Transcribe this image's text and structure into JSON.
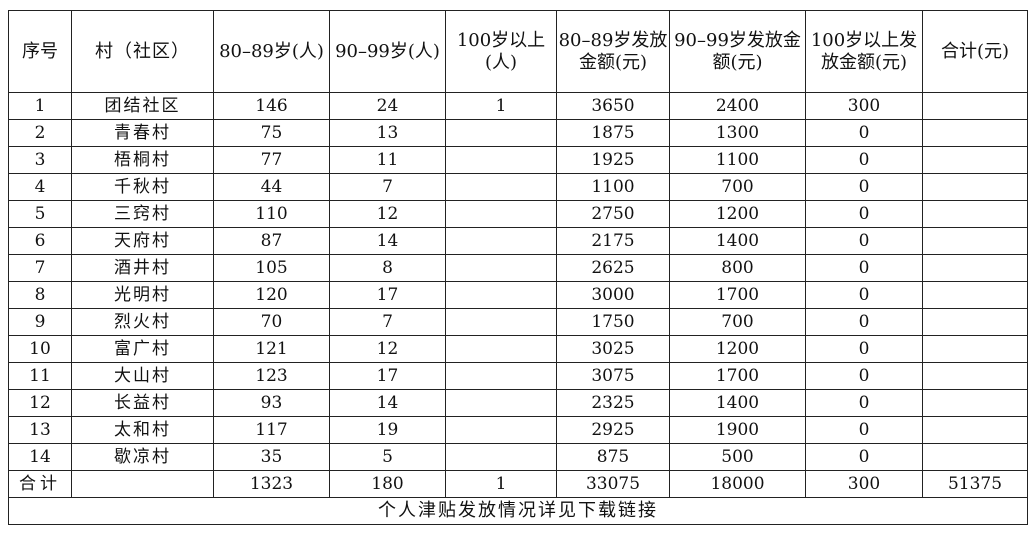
{
  "table": {
    "headers": [
      "序号",
      "村（社区）",
      "80–89岁(人)",
      "90–99岁(人)",
      "100岁以上(人)",
      "80–89岁发放金额(元)",
      "90–99岁发放金额(元)",
      "100岁以上发放金额(元)",
      "合计(元)"
    ],
    "rows": [
      {
        "no": "1",
        "name": "团结社区",
        "n80": "146",
        "n90": "24",
        "n100": "1",
        "a80": "3650",
        "a90": "2400",
        "a100": "300",
        "total": ""
      },
      {
        "no": "2",
        "name": "青春村",
        "n80": "75",
        "n90": "13",
        "n100": "",
        "a80": "1875",
        "a90": "1300",
        "a100": "0",
        "total": ""
      },
      {
        "no": "3",
        "name": "梧桐村",
        "n80": "77",
        "n90": "11",
        "n100": "",
        "a80": "1925",
        "a90": "1100",
        "a100": "0",
        "total": ""
      },
      {
        "no": "4",
        "name": "千秋村",
        "n80": "44",
        "n90": "7",
        "n100": "",
        "a80": "1100",
        "a90": "700",
        "a100": "0",
        "total": ""
      },
      {
        "no": "5",
        "name": "三窍村",
        "n80": "110",
        "n90": "12",
        "n100": "",
        "a80": "2750",
        "a90": "1200",
        "a100": "0",
        "total": ""
      },
      {
        "no": "6",
        "name": "天府村",
        "n80": "87",
        "n90": "14",
        "n100": "",
        "a80": "2175",
        "a90": "1400",
        "a100": "0",
        "total": ""
      },
      {
        "no": "7",
        "name": "酒井村",
        "n80": "105",
        "n90": "8",
        "n100": "",
        "a80": "2625",
        "a90": "800",
        "a100": "0",
        "total": ""
      },
      {
        "no": "8",
        "name": "光明村",
        "n80": "120",
        "n90": "17",
        "n100": "",
        "a80": "3000",
        "a90": "1700",
        "a100": "0",
        "total": ""
      },
      {
        "no": "9",
        "name": "烈火村",
        "n80": "70",
        "n90": "7",
        "n100": "",
        "a80": "1750",
        "a90": "700",
        "a100": "0",
        "total": ""
      },
      {
        "no": "10",
        "name": "富广村",
        "n80": "121",
        "n90": "12",
        "n100": "",
        "a80": "3025",
        "a90": "1200",
        "a100": "0",
        "total": ""
      },
      {
        "no": "11",
        "name": "大山村",
        "n80": "123",
        "n90": "17",
        "n100": "",
        "a80": "3075",
        "a90": "1700",
        "a100": "0",
        "total": ""
      },
      {
        "no": "12",
        "name": "长益村",
        "n80": "93",
        "n90": "14",
        "n100": "",
        "a80": "2325",
        "a90": "1400",
        "a100": "0",
        "total": ""
      },
      {
        "no": "13",
        "name": "太和村",
        "n80": "117",
        "n90": "19",
        "n100": "",
        "a80": "2925",
        "a90": "1900",
        "a100": "0",
        "total": ""
      },
      {
        "no": "14",
        "name": "歇凉村",
        "n80": "35",
        "n90": "5",
        "n100": "",
        "a80": "875",
        "a90": "500",
        "a100": "0",
        "total": ""
      }
    ],
    "total_row": {
      "label": "合计",
      "name": "",
      "n80": "1323",
      "n90": "180",
      "n100": "1",
      "a80": "33075",
      "a90": "18000",
      "a100": "300",
      "total": "51375"
    },
    "footer_note": "个人津贴发放情况详见下载链接"
  }
}
